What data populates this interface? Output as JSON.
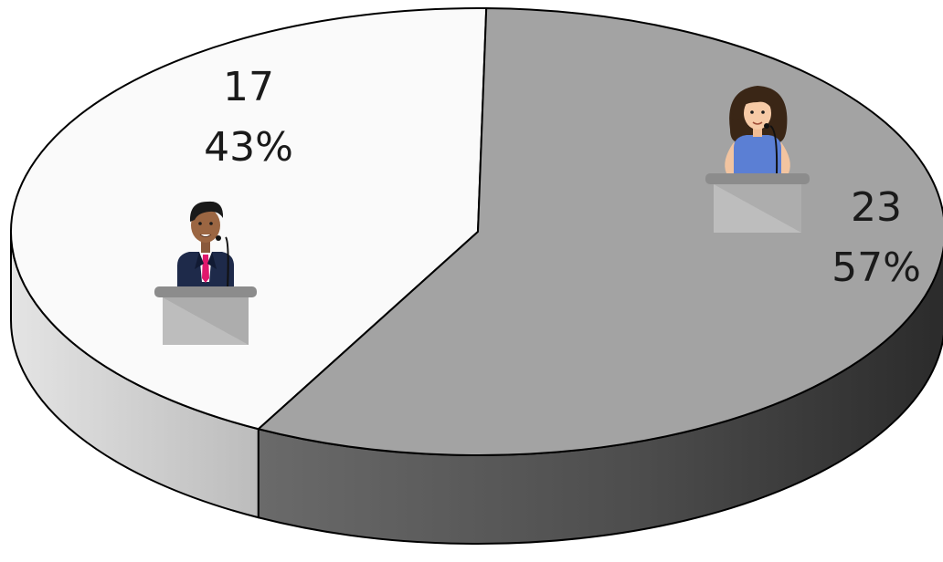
{
  "chart_data": {
    "type": "pie",
    "style": "3d",
    "title": "",
    "slices": [
      {
        "label_value": "17",
        "label_percent": "43%",
        "value": 17,
        "percent": 43,
        "color": "#fafafa",
        "side_color": "#c8c8c8",
        "icon": "male-speaker-at-podium-icon"
      },
      {
        "label_value": "23",
        "label_percent": "57%",
        "value": 23,
        "percent": 57,
        "color": "#a3a3a3",
        "side_color": "#4a4a4a",
        "icon": "female-speaker-at-podium-icon"
      }
    ]
  }
}
